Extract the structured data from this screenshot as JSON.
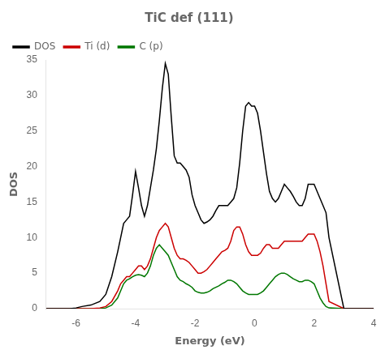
{
  "chart_data": {
    "type": "line",
    "title": "TiC def (111)",
    "xlabel": "Energy (eV)",
    "ylabel": "DOS",
    "xlim": [
      -7,
      4
    ],
    "ylim": [
      0,
      35
    ],
    "xticks": [
      -6,
      -4,
      -2,
      0,
      2,
      4
    ],
    "yticks": [
      0,
      5,
      10,
      15,
      20,
      25,
      30,
      35
    ],
    "grid": false,
    "legend": "upper left",
    "series": [
      {
        "name": "DOS",
        "color": "#000000",
        "x": [
          -7.0,
          -6.5,
          -6.2,
          -6.0,
          -5.8,
          -5.5,
          -5.2,
          -5.0,
          -4.8,
          -4.6,
          -4.5,
          -4.4,
          -4.3,
          -4.2,
          -4.1,
          -4.0,
          -3.9,
          -3.8,
          -3.7,
          -3.6,
          -3.5,
          -3.4,
          -3.3,
          -3.2,
          -3.1,
          -3.0,
          -2.9,
          -2.8,
          -2.7,
          -2.6,
          -2.5,
          -2.4,
          -2.3,
          -2.2,
          -2.1,
          -2.0,
          -1.9,
          -1.8,
          -1.7,
          -1.6,
          -1.5,
          -1.4,
          -1.3,
          -1.2,
          -1.1,
          -1.0,
          -0.9,
          -0.8,
          -0.7,
          -0.6,
          -0.5,
          -0.4,
          -0.3,
          -0.2,
          -0.1,
          0.0,
          0.1,
          0.2,
          0.3,
          0.4,
          0.5,
          0.6,
          0.7,
          0.8,
          0.9,
          1.0,
          1.1,
          1.2,
          1.3,
          1.4,
          1.5,
          1.6,
          1.7,
          1.8,
          1.9,
          2.0,
          2.1,
          2.2,
          2.3,
          2.4,
          2.5,
          3.0,
          3.5,
          4.0
        ],
        "values": [
          0.0,
          0.0,
          0.0,
          0.1,
          0.3,
          0.5,
          1.0,
          2.0,
          4.5,
          8.0,
          10.0,
          12.0,
          12.5,
          13.0,
          16.0,
          19.3,
          17.0,
          14.5,
          13.0,
          14.5,
          17.0,
          19.5,
          22.5,
          26.5,
          31.0,
          34.5,
          33.0,
          27.0,
          21.5,
          20.5,
          20.5,
          20.0,
          19.5,
          18.5,
          16.0,
          14.5,
          13.5,
          12.5,
          12.0,
          12.2,
          12.5,
          13.0,
          13.8,
          14.5,
          14.5,
          14.5,
          14.5,
          15.0,
          15.5,
          17.0,
          20.5,
          25.0,
          28.5,
          29.0,
          28.5,
          28.5,
          27.5,
          25.0,
          22.0,
          19.0,
          16.5,
          15.5,
          15.0,
          15.5,
          16.5,
          17.5,
          17.0,
          16.5,
          15.8,
          15.0,
          14.5,
          14.5,
          15.5,
          17.5,
          17.5,
          17.5,
          16.5,
          15.5,
          14.5,
          13.5,
          10.0,
          0.0,
          0.0,
          0.0
        ]
      },
      {
        "name": "Ti (d)",
        "color": "#cc0000",
        "x": [
          -7.0,
          -6.0,
          -5.5,
          -5.2,
          -5.0,
          -4.8,
          -4.6,
          -4.5,
          -4.4,
          -4.3,
          -4.2,
          -4.1,
          -4.0,
          -3.9,
          -3.8,
          -3.7,
          -3.6,
          -3.5,
          -3.4,
          -3.3,
          -3.2,
          -3.1,
          -3.0,
          -2.9,
          -2.8,
          -2.7,
          -2.6,
          -2.5,
          -2.4,
          -2.3,
          -2.2,
          -2.1,
          -2.0,
          -1.9,
          -1.8,
          -1.7,
          -1.6,
          -1.5,
          -1.4,
          -1.3,
          -1.2,
          -1.1,
          -1.0,
          -0.9,
          -0.8,
          -0.7,
          -0.6,
          -0.5,
          -0.4,
          -0.3,
          -0.2,
          -0.1,
          0.0,
          0.1,
          0.2,
          0.3,
          0.4,
          0.5,
          0.6,
          0.7,
          0.8,
          0.9,
          1.0,
          1.1,
          1.2,
          1.3,
          1.4,
          1.5,
          1.6,
          1.7,
          1.8,
          1.9,
          2.0,
          2.1,
          2.2,
          2.3,
          2.4,
          2.5,
          3.0,
          3.5,
          4.0
        ],
        "values": [
          0.0,
          0.0,
          0.0,
          0.1,
          0.3,
          1.0,
          2.5,
          3.5,
          4.0,
          4.5,
          4.5,
          5.0,
          5.5,
          6.0,
          6.0,
          5.5,
          6.0,
          7.0,
          8.5,
          10.0,
          11.0,
          11.5,
          12.0,
          11.5,
          10.0,
          8.5,
          7.5,
          7.0,
          7.0,
          6.8,
          6.5,
          6.0,
          5.5,
          5.0,
          5.0,
          5.2,
          5.5,
          6.0,
          6.5,
          7.0,
          7.5,
          8.0,
          8.2,
          8.5,
          9.5,
          11.0,
          11.5,
          11.5,
          10.5,
          9.0,
          8.0,
          7.5,
          7.5,
          7.5,
          7.8,
          8.5,
          9.0,
          9.0,
          8.5,
          8.5,
          8.5,
          9.0,
          9.5,
          9.5,
          9.5,
          9.5,
          9.5,
          9.5,
          9.5,
          10.0,
          10.5,
          10.5,
          10.5,
          9.5,
          8.0,
          6.0,
          3.5,
          1.0,
          0.0,
          0.0,
          0.0
        ]
      },
      {
        "name": "C (p)",
        "color": "#007700",
        "x": [
          -7.0,
          -6.0,
          -5.5,
          -5.2,
          -5.0,
          -4.8,
          -4.6,
          -4.5,
          -4.4,
          -4.3,
          -4.2,
          -4.1,
          -4.0,
          -3.9,
          -3.8,
          -3.7,
          -3.6,
          -3.5,
          -3.4,
          -3.3,
          -3.2,
          -3.1,
          -3.0,
          -2.9,
          -2.8,
          -2.7,
          -2.6,
          -2.5,
          -2.4,
          -2.3,
          -2.2,
          -2.1,
          -2.0,
          -1.9,
          -1.8,
          -1.7,
          -1.6,
          -1.5,
          -1.4,
          -1.3,
          -1.2,
          -1.1,
          -1.0,
          -0.9,
          -0.8,
          -0.7,
          -0.6,
          -0.5,
          -0.4,
          -0.3,
          -0.2,
          -0.1,
          0.0,
          0.1,
          0.2,
          0.3,
          0.4,
          0.5,
          0.6,
          0.7,
          0.8,
          0.9,
          1.0,
          1.1,
          1.2,
          1.3,
          1.4,
          1.5,
          1.6,
          1.7,
          1.8,
          1.9,
          2.0,
          2.1,
          2.2,
          2.3,
          2.4,
          2.5,
          3.0,
          3.5,
          4.0
        ],
        "values": [
          0.0,
          0.0,
          0.0,
          0.0,
          0.1,
          0.5,
          1.5,
          2.5,
          3.5,
          4.0,
          4.2,
          4.5,
          4.7,
          4.8,
          4.7,
          4.5,
          5.0,
          6.0,
          7.5,
          8.5,
          9.0,
          8.5,
          8.0,
          7.5,
          6.5,
          5.5,
          4.5,
          4.0,
          3.8,
          3.5,
          3.3,
          3.0,
          2.5,
          2.3,
          2.2,
          2.2,
          2.3,
          2.5,
          2.8,
          3.0,
          3.2,
          3.5,
          3.7,
          4.0,
          4.0,
          3.8,
          3.5,
          3.0,
          2.5,
          2.2,
          2.0,
          2.0,
          2.0,
          2.0,
          2.2,
          2.5,
          3.0,
          3.5,
          4.0,
          4.5,
          4.8,
          5.0,
          5.0,
          4.8,
          4.5,
          4.2,
          4.0,
          3.8,
          3.8,
          4.0,
          4.0,
          3.8,
          3.5,
          2.5,
          1.5,
          0.8,
          0.3,
          0.1,
          0.0,
          0.0,
          0.0
        ]
      }
    ]
  }
}
